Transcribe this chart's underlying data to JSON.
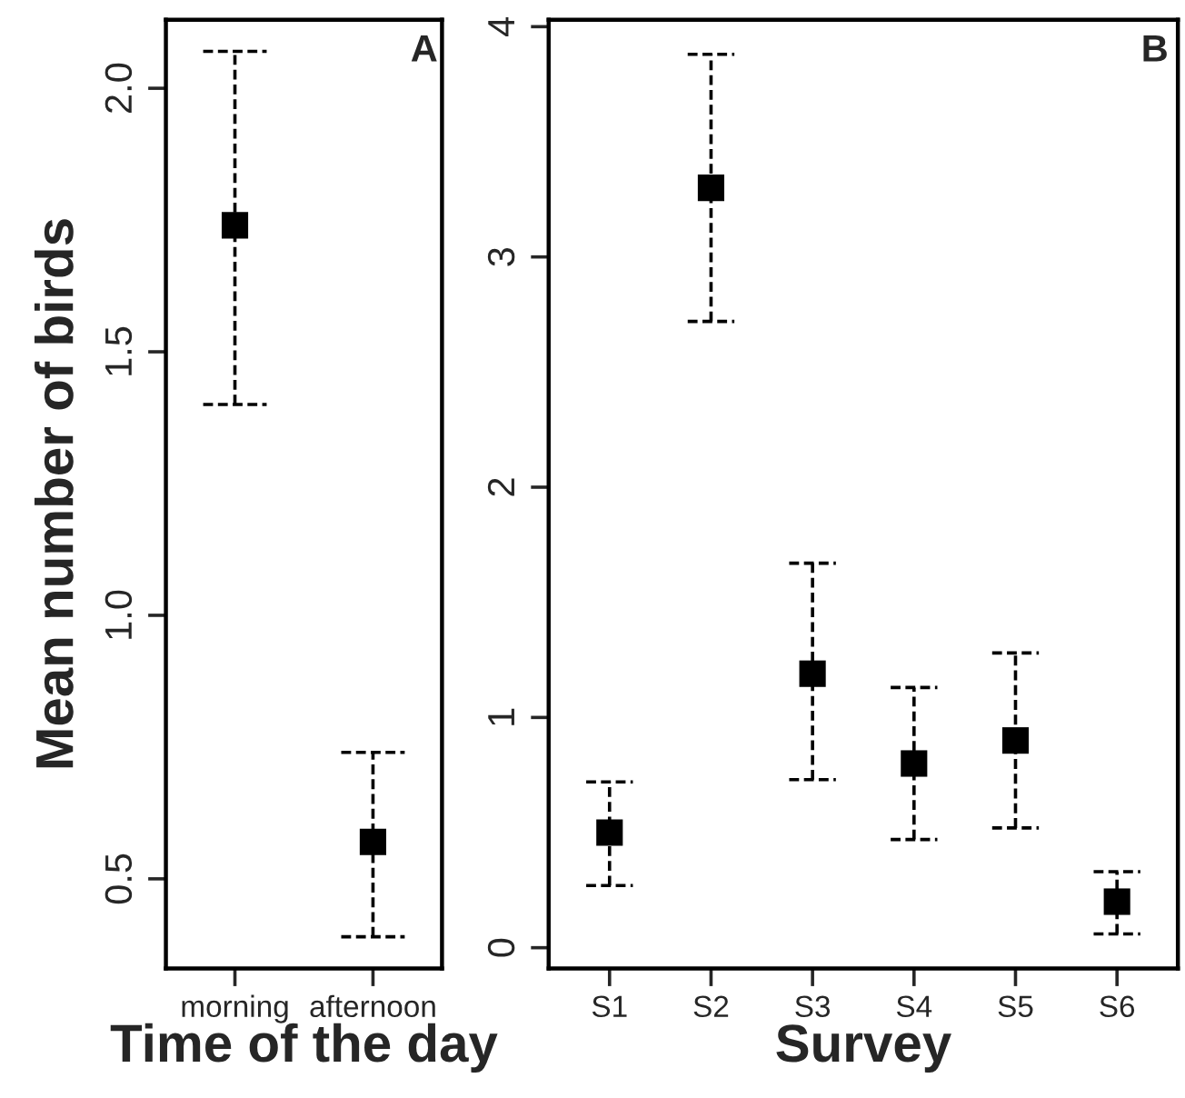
{
  "chart_data": [
    {
      "type": "scatter",
      "ylabel": "Mean number of birds",
      "xlabel": "Time of the day",
      "annotations": [
        "A"
      ],
      "categories": [
        "morning",
        "afternoon"
      ],
      "values": [
        1.74,
        0.57
      ],
      "errors": [
        [
          1.4,
          2.07
        ],
        [
          0.39,
          0.74
        ]
      ],
      "color": "#000000",
      "marker": "square",
      "line_style": "dashed",
      "ylim": [
        0.33,
        2.13
      ],
      "yticks": [
        {
          "value": 0.5,
          "label": "0.5"
        },
        {
          "value": 1.0,
          "label": "1.0"
        },
        {
          "value": 1.5,
          "label": "1.5"
        },
        {
          "value": 2.0,
          "label": "2.0"
        }
      ],
      "grid": false,
      "legend": false
    },
    {
      "type": "scatter",
      "xlabel": "Survey",
      "annotations": [
        "B"
      ],
      "categories": [
        "S1",
        "S2",
        "S3",
        "S4",
        "S5",
        "S6"
      ],
      "values": [
        0.5,
        3.3,
        1.19,
        0.8,
        0.9,
        0.2
      ],
      "errors": [
        [
          0.27,
          0.72
        ],
        [
          2.72,
          3.88
        ],
        [
          0.73,
          1.67
        ],
        [
          0.47,
          1.13
        ],
        [
          0.52,
          1.28
        ],
        [
          0.06,
          0.33
        ]
      ],
      "color": "#000000",
      "marker": "square",
      "line_style": "dashed",
      "ylim": [
        -0.09,
        4.03
      ],
      "yticks": [
        0,
        1,
        2,
        3,
        4
      ],
      "grid": false,
      "legend": false
    }
  ]
}
